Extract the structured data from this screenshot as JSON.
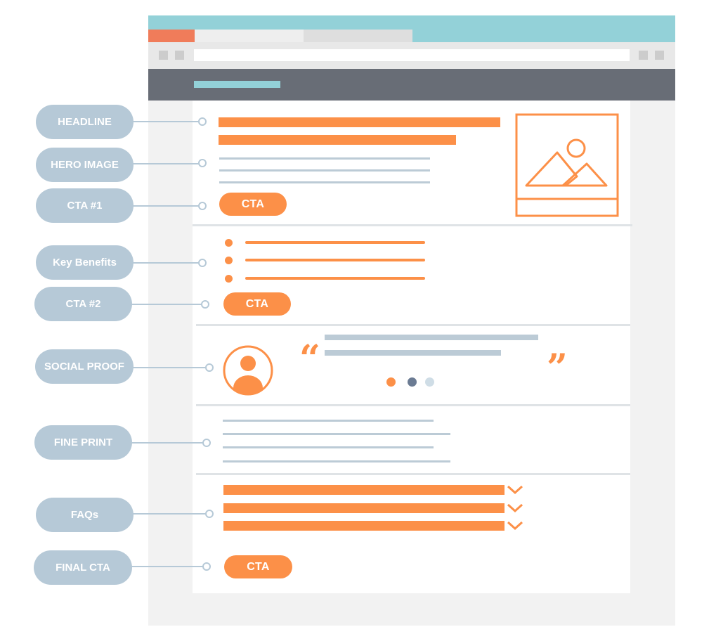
{
  "labels": {
    "headline": "HEADLINE",
    "hero_image": "HERO IMAGE",
    "cta1": "CTA #1",
    "key_benefits": "Key Benefits",
    "cta2": "CTA #2",
    "social_proof": "SOCIAL PROOF",
    "fine_print": "FINE PRINT",
    "faqs": "FAQs",
    "final_cta": "FINAL CTA"
  },
  "buttons": {
    "cta1": "CTA",
    "cta2": "CTA",
    "final": "CTA"
  },
  "testimonial": {
    "open_quote": "“",
    "close_quote": "”"
  },
  "icons": {
    "hero": "image-placeholder-icon",
    "avatar": "user-avatar-icon",
    "faq_toggle": "chevron-down-icon"
  },
  "colors": {
    "accent": "#fc9048",
    "label": "#b6c9d7",
    "nav": "#686d76",
    "browser_top": "#93d1d8",
    "tab_active": "#f07c5a",
    "pager_dots": [
      "#fc9048",
      "#6b7b93",
      "#cfdde6"
    ]
  }
}
